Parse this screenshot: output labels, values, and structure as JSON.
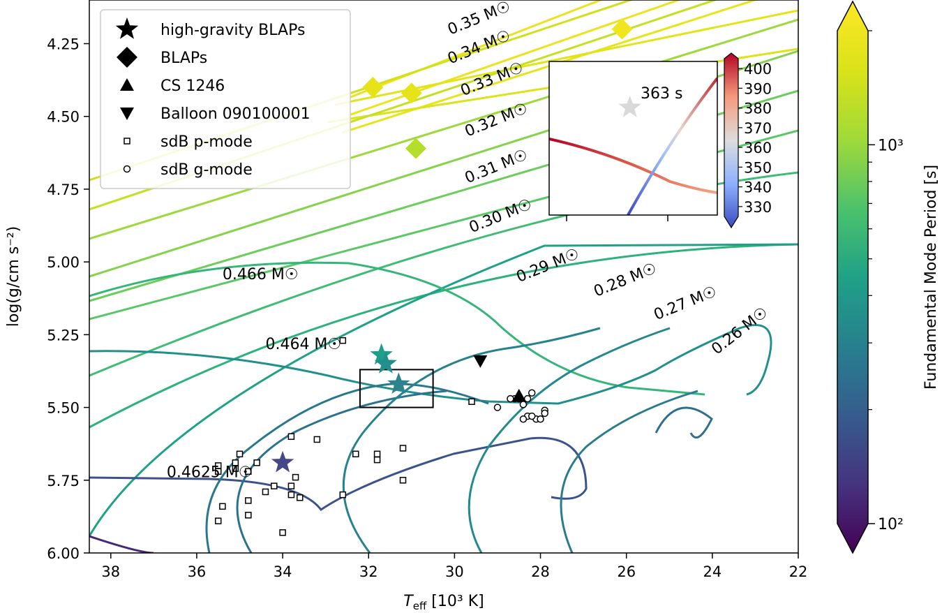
{
  "chart_data": {
    "type": "scatter",
    "title": "",
    "xlabel_main": "T",
    "xlabel_sub": "eff",
    "xlabel_rest": " [10³ K]",
    "ylabel": "log(g/cm s⁻²)",
    "xlim": [
      38.5,
      22
    ],
    "ylim": [
      6.0,
      4.1
    ],
    "x_ticks": [
      38,
      36,
      34,
      32,
      30,
      28,
      26,
      24,
      22
    ],
    "x_tick_labels": [
      "38",
      "36",
      "34",
      "32",
      "30",
      "28",
      "26",
      "24",
      "22"
    ],
    "y_ticks": [
      4.25,
      4.5,
      4.75,
      5.0,
      5.25,
      5.5,
      5.75,
      6.0
    ],
    "y_tick_labels": [
      "4.25",
      "4.50",
      "4.75",
      "5.00",
      "5.25",
      "5.50",
      "5.75",
      "6.00"
    ],
    "legend": {
      "location": "upper-left",
      "entries": [
        {
          "marker": "star",
          "label": "high-gravity BLAPs"
        },
        {
          "marker": "diamond",
          "label": "BLAPs"
        },
        {
          "marker": "triangle-up",
          "label": "CS 1246"
        },
        {
          "marker": "triangle-down",
          "label": "Balloon 090100001"
        },
        {
          "marker": "square-open",
          "label": "sdB p-mode"
        },
        {
          "marker": "circle-open",
          "label": "sdB g-mode"
        }
      ]
    },
    "colorbar": {
      "label": "Fundamental Mode Period [s]",
      "scale": "log",
      "range": [
        100,
        2000
      ],
      "tick_labels": [
        "10²",
        "10³"
      ],
      "tick_values": [
        100,
        1000
      ]
    },
    "track_labels": [
      {
        "text": "0.35 M☉",
        "x": 30.1,
        "y": 4.22,
        "rotate": -22
      },
      {
        "text": "0.34 M☉",
        "x": 30.1,
        "y": 4.32,
        "rotate": -22
      },
      {
        "text": "0.33 M☉",
        "x": 29.8,
        "y": 4.43,
        "rotate": -22
      },
      {
        "text": "0.32 M☉",
        "x": 29.7,
        "y": 4.57,
        "rotate": -22
      },
      {
        "text": "0.31 M☉",
        "x": 29.7,
        "y": 4.73,
        "rotate": -22
      },
      {
        "text": "0.30 M☉",
        "x": 29.6,
        "y": 4.9,
        "rotate": -22
      },
      {
        "text": "0.29 M☉",
        "x": 28.5,
        "y": 5.07,
        "rotate": -22
      },
      {
        "text": "0.28 M☉",
        "x": 26.7,
        "y": 5.12,
        "rotate": -22
      },
      {
        "text": "0.27 M☉",
        "x": 25.3,
        "y": 5.2,
        "rotate": -22
      },
      {
        "text": "0.26 M☉",
        "x": 23.9,
        "y": 5.32,
        "rotate": -38
      },
      {
        "text": "0.466 M☉",
        "x": 35.4,
        "y": 5.06,
        "rotate": 0
      },
      {
        "text": "0.464 M☉",
        "x": 34.4,
        "y": 5.3,
        "rotate": 0
      },
      {
        "text": "0.4625 M☉",
        "x": 36.7,
        "y": 5.74,
        "rotate": 0
      }
    ],
    "series": [
      {
        "name": "high-gravity BLAPs",
        "marker": "star",
        "points": [
          {
            "x": 31.7,
            "y": 5.32,
            "c": "#1f9e89"
          },
          {
            "x": 31.6,
            "y": 5.35,
            "c": "#21908d"
          },
          {
            "x": 31.3,
            "y": 5.42,
            "c": "#2c838e"
          },
          {
            "x": 34.0,
            "y": 5.69,
            "c": "#46468b"
          }
        ]
      },
      {
        "name": "BLAPs",
        "marker": "diamond",
        "points": [
          {
            "x": 31.9,
            "y": 4.4,
            "c": "#e6e419"
          },
          {
            "x": 31.0,
            "y": 4.42,
            "c": "#e6e419"
          },
          {
            "x": 30.9,
            "y": 4.61,
            "c": "#b5de2b"
          },
          {
            "x": 26.1,
            "y": 4.2,
            "c": "#f1e51d"
          }
        ]
      },
      {
        "name": "CS 1246",
        "marker": "triangle-up",
        "points": [
          {
            "x": 28.5,
            "y": 5.46
          }
        ]
      },
      {
        "name": "Balloon 090100001",
        "marker": "triangle-down",
        "points": [
          {
            "x": 29.4,
            "y": 5.34
          }
        ]
      },
      {
        "name": "sdB p-mode",
        "marker": "square-open",
        "points": [
          {
            "x": 32.6,
            "y": 5.27
          },
          {
            "x": 29.6,
            "y": 5.48
          },
          {
            "x": 33.8,
            "y": 5.6
          },
          {
            "x": 33.2,
            "y": 5.61
          },
          {
            "x": 31.2,
            "y": 5.64
          },
          {
            "x": 32.3,
            "y": 5.66
          },
          {
            "x": 31.8,
            "y": 5.66
          },
          {
            "x": 31.8,
            "y": 5.68
          },
          {
            "x": 35.0,
            "y": 5.66
          },
          {
            "x": 35.1,
            "y": 5.69
          },
          {
            "x": 34.6,
            "y": 5.69
          },
          {
            "x": 35.5,
            "y": 5.7
          },
          {
            "x": 35.5,
            "y": 5.72
          },
          {
            "x": 34.8,
            "y": 5.72
          },
          {
            "x": 35.1,
            "y": 5.71
          },
          {
            "x": 33.7,
            "y": 5.74
          },
          {
            "x": 31.2,
            "y": 5.75
          },
          {
            "x": 33.8,
            "y": 5.77
          },
          {
            "x": 34.2,
            "y": 5.77
          },
          {
            "x": 34.4,
            "y": 5.79
          },
          {
            "x": 33.8,
            "y": 5.8
          },
          {
            "x": 33.6,
            "y": 5.81
          },
          {
            "x": 34.8,
            "y": 5.82
          },
          {
            "x": 32.6,
            "y": 5.8
          },
          {
            "x": 35.4,
            "y": 5.84
          },
          {
            "x": 34.8,
            "y": 5.87
          },
          {
            "x": 35.5,
            "y": 5.89
          },
          {
            "x": 34.0,
            "y": 5.93
          }
        ]
      },
      {
        "name": "sdB g-mode",
        "marker": "circle-open",
        "points": [
          {
            "x": 28.6,
            "y": 5.47
          },
          {
            "x": 28.5,
            "y": 5.47
          },
          {
            "x": 28.2,
            "y": 5.45
          },
          {
            "x": 28.3,
            "y": 5.47
          },
          {
            "x": 28.7,
            "y": 5.47
          },
          {
            "x": 29.0,
            "y": 5.5
          },
          {
            "x": 28.4,
            "y": 5.49
          },
          {
            "x": 27.9,
            "y": 5.51
          },
          {
            "x": 27.9,
            "y": 5.52
          },
          {
            "x": 28.3,
            "y": 5.53
          },
          {
            "x": 28.1,
            "y": 5.54
          },
          {
            "x": 28.2,
            "y": 5.53
          },
          {
            "x": 28.0,
            "y": 5.54
          },
          {
            "x": 28.4,
            "y": 5.54
          }
        ]
      }
    ],
    "inset": {
      "annotation": "363 s",
      "colorbar_ticks": [
        330,
        340,
        350,
        360,
        370,
        380,
        390,
        400
      ],
      "colorbar_tick_labels": [
        "330",
        "340",
        "350",
        "360",
        "370",
        "380",
        "390",
        "400"
      ],
      "colorbar_range": [
        325,
        405
      ],
      "star": {
        "x": 0.48,
        "y": 0.3
      }
    },
    "zoom_box": {
      "x": [
        32.2,
        30.5
      ],
      "y": [
        5.37,
        5.5
      ]
    }
  }
}
